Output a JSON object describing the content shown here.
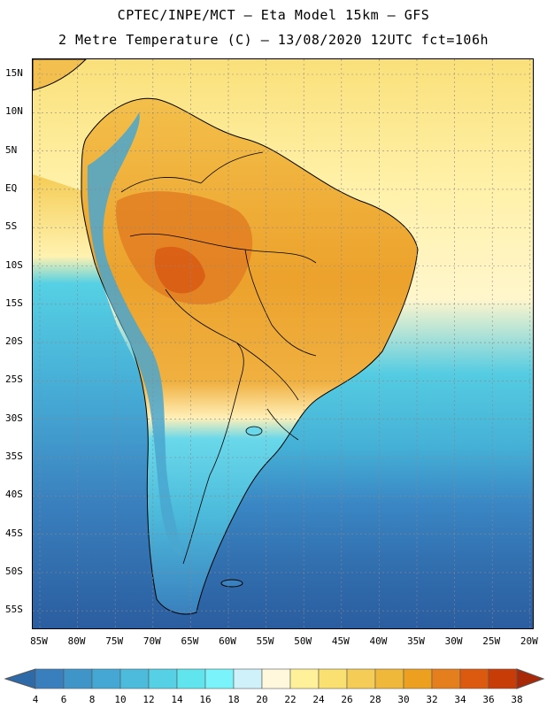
{
  "title_line1": "CPTEC/INPE/MCT –  Eta Model 15km – GFS",
  "title_line2": "2 Metre Temperature (C) – 13/08/2020 12UTC fct=106h",
  "lat_labels": [
    "15N",
    "10N",
    "5N",
    "EQ",
    "5S",
    "10S",
    "15S",
    "20S",
    "25S",
    "30S",
    "35S",
    "40S",
    "45S",
    "50S",
    "55S"
  ],
  "lon_labels": [
    "85W",
    "80W",
    "75W",
    "70W",
    "65W",
    "60W",
    "55W",
    "50W",
    "45W",
    "40W",
    "35W",
    "30W",
    "25W",
    "20W"
  ],
  "colorbar": {
    "values": [
      "4",
      "6",
      "8",
      "10",
      "12",
      "14",
      "16",
      "18",
      "20",
      "22",
      "24",
      "26",
      "28",
      "30",
      "32",
      "34",
      "36",
      "38"
    ],
    "colors": [
      "#2f6aa8",
      "#3a7fbd",
      "#3f94c8",
      "#45a8d4",
      "#4dbcdc",
      "#55d0e4",
      "#60e4ee",
      "#7af4fa",
      "#cff2fa",
      "#fff8dc",
      "#fff09a",
      "#fae070",
      "#f5cc55",
      "#f0b83a",
      "#eda020",
      "#e57e1c",
      "#dc5a10",
      "#c83c08",
      "#a82808"
    ]
  },
  "colors": {
    "ocean_cold": "#2a5da0",
    "ocean_mid": "#3a86c4",
    "ocean_cool": "#4fc4dd",
    "ocean_warm": "#fff3b0",
    "ocean_tropic": "#f7d36a",
    "land_hot": "#e89a2a",
    "land_very_hot": "#d8661a",
    "andes": "#4aa6cf",
    "coast": "#000000"
  }
}
